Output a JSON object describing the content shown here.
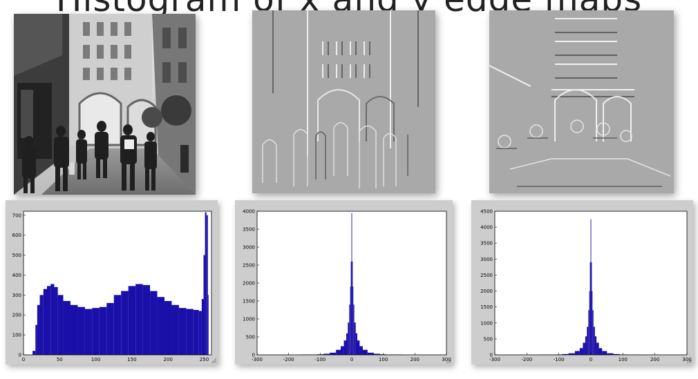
{
  "title": "Histogram of x and y edge maps",
  "images": [
    {
      "name": "grayscale-street-photo"
    },
    {
      "name": "x-edge-map"
    },
    {
      "name": "y-edge-map"
    }
  ],
  "colors": {
    "bar": "#1a0fa8",
    "figure_bg": "#cdcdcd",
    "axes_bg": "#ffffff"
  },
  "chart_data": [
    {
      "type": "bar",
      "title": "",
      "xlabel": "",
      "ylabel": "",
      "xlim": [
        0,
        260
      ],
      "ylim": [
        0,
        720
      ],
      "xticks": [
        0,
        50,
        100,
        150,
        200,
        250
      ],
      "yticks": [
        0,
        100,
        200,
        300,
        400,
        500,
        600,
        700
      ],
      "grid": false,
      "x": [
        0,
        10,
        15,
        18,
        20,
        25,
        30,
        35,
        40,
        45,
        50,
        60,
        70,
        80,
        90,
        100,
        110,
        120,
        130,
        140,
        150,
        160,
        170,
        180,
        190,
        200,
        210,
        220,
        230,
        240,
        245,
        248,
        250,
        252,
        254,
        256
      ],
      "values": [
        0,
        0,
        20,
        150,
        250,
        300,
        330,
        345,
        355,
        340,
        300,
        270,
        250,
        240,
        230,
        235,
        240,
        260,
        300,
        320,
        345,
        355,
        350,
        320,
        290,
        270,
        250,
        235,
        230,
        225,
        220,
        280,
        500,
        715,
        700,
        300
      ]
    },
    {
      "type": "bar",
      "title": "",
      "xlabel": "",
      "ylabel": "",
      "xlim": [
        -300,
        300
      ],
      "ylim": [
        0,
        4000
      ],
      "xticks": [
        -300,
        -200,
        -100,
        0,
        100,
        200,
        300
      ],
      "yticks": [
        0,
        500,
        1000,
        1500,
        2000,
        2500,
        3000,
        3500,
        4000
      ],
      "grid": false,
      "x": [
        -300,
        -200,
        -120,
        -100,
        -80,
        -60,
        -40,
        -30,
        -20,
        -15,
        -10,
        -6,
        -4,
        -2,
        0,
        2,
        4,
        6,
        10,
        15,
        20,
        30,
        40,
        60,
        80,
        100,
        120,
        200,
        300
      ],
      "values": [
        0,
        0,
        8,
        15,
        30,
        60,
        140,
        240,
        400,
        600,
        900,
        1400,
        1900,
        2600,
        3950,
        2600,
        1900,
        1400,
        900,
        600,
        400,
        240,
        140,
        60,
        30,
        15,
        8,
        0,
        0
      ]
    },
    {
      "type": "bar",
      "title": "",
      "xlabel": "",
      "ylabel": "",
      "xlim": [
        -300,
        300
      ],
      "ylim": [
        0,
        4500
      ],
      "xticks": [
        -300,
        -200,
        -100,
        0,
        100,
        200,
        300
      ],
      "yticks": [
        0,
        500,
        1000,
        1500,
        2000,
        2500,
        3000,
        3500,
        4000,
        4500
      ],
      "grid": false,
      "x": [
        -300,
        -200,
        -120,
        -100,
        -80,
        -60,
        -40,
        -30,
        -20,
        -15,
        -10,
        -6,
        -4,
        -2,
        0,
        2,
        4,
        6,
        10,
        15,
        20,
        30,
        40,
        60,
        80,
        100,
        120,
        200,
        300
      ],
      "values": [
        0,
        0,
        6,
        12,
        25,
        50,
        120,
        210,
        380,
        580,
        880,
        1400,
        2000,
        2900,
        4250,
        2900,
        2000,
        1400,
        880,
        580,
        380,
        210,
        120,
        50,
        25,
        12,
        6,
        0,
        0
      ]
    }
  ]
}
